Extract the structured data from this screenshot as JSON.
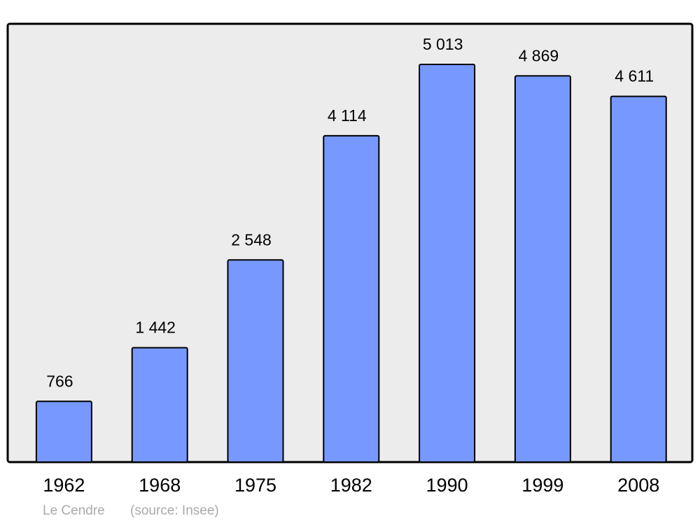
{
  "chart_data": {
    "type": "bar",
    "categories": [
      "1962",
      "1968",
      "1975",
      "1982",
      "1990",
      "1999",
      "2008"
    ],
    "values": [
      766,
      1442,
      2548,
      4114,
      5013,
      4869,
      4611
    ],
    "value_labels": [
      "766",
      "1 442",
      "2 548",
      "4 114",
      "5 013",
      "4 869",
      "4 611"
    ],
    "color": "#7799ff",
    "place": "Le Cendre",
    "source": "(source: Insee)"
  }
}
